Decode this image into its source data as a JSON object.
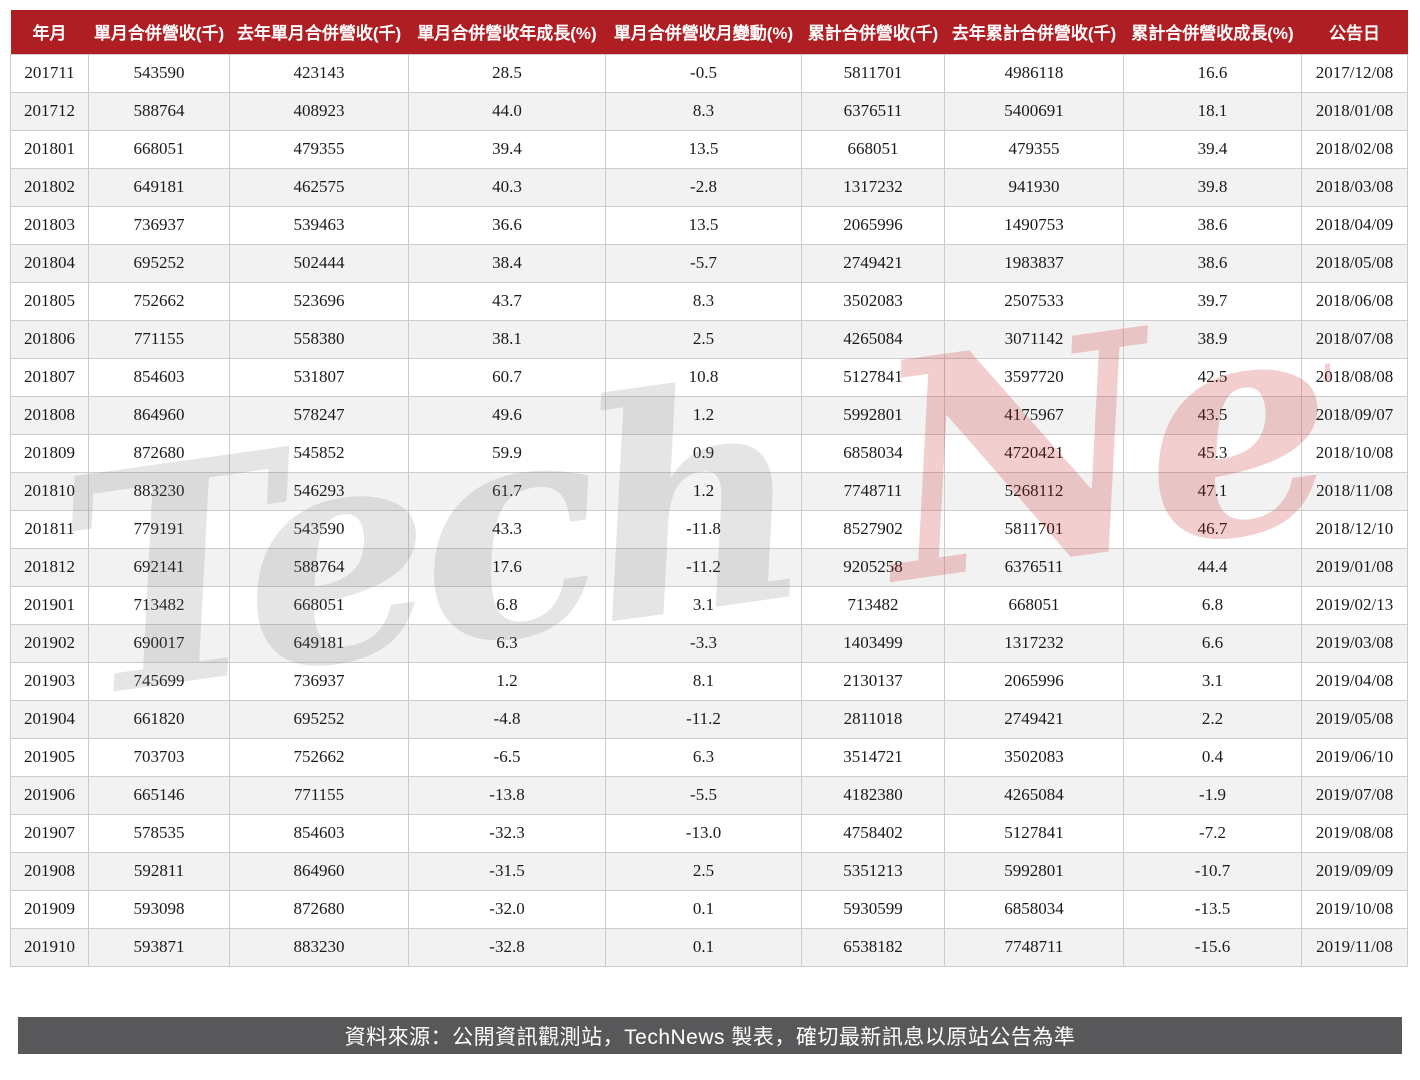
{
  "chart_data": {
    "type": "table",
    "columns": [
      "年月",
      "單月合併營收(千)",
      "去年單月合併營收(千)",
      "單月合併營收年成長(%)",
      "單月合併營收月變動(%)",
      "累計合併營收(千)",
      "去年累計合併營收(千)",
      "累計合併營收成長(%)",
      "公告日"
    ],
    "rows": [
      [
        "201711",
        "543590",
        "423143",
        "28.5",
        "-0.5",
        "5811701",
        "4986118",
        "16.6",
        "2017/12/08"
      ],
      [
        "201712",
        "588764",
        "408923",
        "44.0",
        "8.3",
        "6376511",
        "5400691",
        "18.1",
        "2018/01/08"
      ],
      [
        "201801",
        "668051",
        "479355",
        "39.4",
        "13.5",
        "668051",
        "479355",
        "39.4",
        "2018/02/08"
      ],
      [
        "201802",
        "649181",
        "462575",
        "40.3",
        "-2.8",
        "1317232",
        "941930",
        "39.8",
        "2018/03/08"
      ],
      [
        "201803",
        "736937",
        "539463",
        "36.6",
        "13.5",
        "2065996",
        "1490753",
        "38.6",
        "2018/04/09"
      ],
      [
        "201804",
        "695252",
        "502444",
        "38.4",
        "-5.7",
        "2749421",
        "1983837",
        "38.6",
        "2018/05/08"
      ],
      [
        "201805",
        "752662",
        "523696",
        "43.7",
        "8.3",
        "3502083",
        "2507533",
        "39.7",
        "2018/06/08"
      ],
      [
        "201806",
        "771155",
        "558380",
        "38.1",
        "2.5",
        "4265084",
        "3071142",
        "38.9",
        "2018/07/08"
      ],
      [
        "201807",
        "854603",
        "531807",
        "60.7",
        "10.8",
        "5127841",
        "3597720",
        "42.5",
        "2018/08/08"
      ],
      [
        "201808",
        "864960",
        "578247",
        "49.6",
        "1.2",
        "5992801",
        "4175967",
        "43.5",
        "2018/09/07"
      ],
      [
        "201809",
        "872680",
        "545852",
        "59.9",
        "0.9",
        "6858034",
        "4720421",
        "45.3",
        "2018/10/08"
      ],
      [
        "201810",
        "883230",
        "546293",
        "61.7",
        "1.2",
        "7748711",
        "5268112",
        "47.1",
        "2018/11/08"
      ],
      [
        "201811",
        "779191",
        "543590",
        "43.3",
        "-11.8",
        "8527902",
        "5811701",
        "46.7",
        "2018/12/10"
      ],
      [
        "201812",
        "692141",
        "588764",
        "17.6",
        "-11.2",
        "9205258",
        "6376511",
        "44.4",
        "2019/01/08"
      ],
      [
        "201901",
        "713482",
        "668051",
        "6.8",
        "3.1",
        "713482",
        "668051",
        "6.8",
        "2019/02/13"
      ],
      [
        "201902",
        "690017",
        "649181",
        "6.3",
        "-3.3",
        "1403499",
        "1317232",
        "6.6",
        "2019/03/08"
      ],
      [
        "201903",
        "745699",
        "736937",
        "1.2",
        "8.1",
        "2130137",
        "2065996",
        "3.1",
        "2019/04/08"
      ],
      [
        "201904",
        "661820",
        "695252",
        "-4.8",
        "-11.2",
        "2811018",
        "2749421",
        "2.2",
        "2019/05/08"
      ],
      [
        "201905",
        "703703",
        "752662",
        "-6.5",
        "6.3",
        "3514721",
        "3502083",
        "0.4",
        "2019/06/10"
      ],
      [
        "201906",
        "665146",
        "771155",
        "-13.8",
        "-5.5",
        "4182380",
        "4265084",
        "-1.9",
        "2019/07/08"
      ],
      [
        "201907",
        "578535",
        "854603",
        "-32.3",
        "-13.0",
        "4758402",
        "5127841",
        "-7.2",
        "2019/08/08"
      ],
      [
        "201908",
        "592811",
        "864960",
        "-31.5",
        "2.5",
        "5351213",
        "5992801",
        "-10.7",
        "2019/09/09"
      ],
      [
        "201909",
        "593098",
        "872680",
        "-32.0",
        "0.1",
        "5930599",
        "6858034",
        "-13.5",
        "2019/10/08"
      ],
      [
        "201910",
        "593871",
        "883230",
        "-32.8",
        "0.1",
        "6538182",
        "7748711",
        "-15.6",
        "2019/11/08"
      ]
    ],
    "source_note": "資料來源：公開資訊觀測站，TechNews 製表，確切最新訊息以原站公告為準"
  },
  "watermark": {
    "part1": "Tech",
    "part2": "News"
  },
  "colors": {
    "header_bg": "#AF1E23",
    "header_text": "#FFFFFF",
    "row_alt": "#F2F2F2",
    "border": "#CCCCCC",
    "footer_bg": "#58585A",
    "footer_text": "#FFFFFF",
    "watermark_gray": "rgba(110,110,110,0.18)",
    "watermark_red": "rgba(200,30,30,0.22)"
  }
}
